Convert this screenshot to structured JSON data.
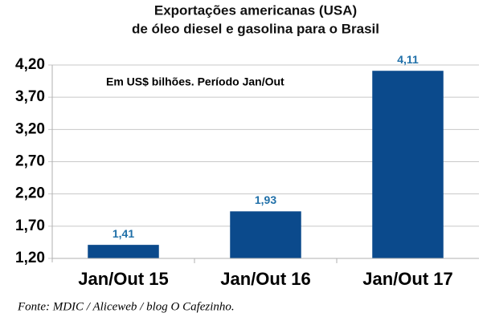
{
  "chart_data": {
    "type": "bar",
    "title": [
      "Exportações americanas (USA)",
      "de óleo diesel e gasolina para o Brasil"
    ],
    "subtitle": "Em US$ bilhões. Período Jan/Out",
    "source": "Fonte: MDIC / Aliceweb / blog O Cafezinho.",
    "categories": [
      "Jan/Out 15",
      "Jan/Out 16",
      "Jan/Out 17"
    ],
    "values": [
      1.41,
      1.93,
      4.11
    ],
    "value_labels": [
      "1,41",
      "1,93",
      "4,11"
    ],
    "color": "#0b4a8c",
    "ylim": [
      1.2,
      4.2
    ],
    "yticks": [
      {
        "value": 1.2,
        "label": "1,20"
      },
      {
        "value": 1.7,
        "label": "1,70"
      },
      {
        "value": 2.2,
        "label": "2,20"
      },
      {
        "value": 2.7,
        "label": "2,70"
      },
      {
        "value": 3.2,
        "label": "3,20"
      },
      {
        "value": 3.7,
        "label": "3,70"
      },
      {
        "value": 4.2,
        "label": "4,20"
      }
    ],
    "grid": true
  }
}
